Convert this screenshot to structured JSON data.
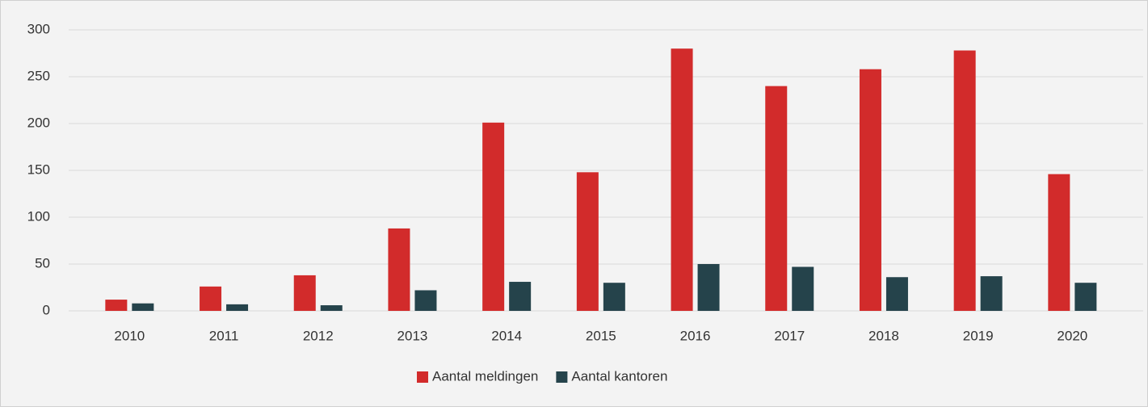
{
  "chart_data": {
    "type": "bar",
    "categories": [
      "2010",
      "2011",
      "2012",
      "2013",
      "2014",
      "2015",
      "2016",
      "2017",
      "2018",
      "2019",
      "2020"
    ],
    "series": [
      {
        "name": "Aantal meldingen",
        "color": "#d22b2b",
        "values": [
          12,
          26,
          38,
          88,
          201,
          148,
          280,
          240,
          258,
          278,
          146
        ]
      },
      {
        "name": "Aantal kantoren",
        "color": "#25434b",
        "values": [
          8,
          7,
          6,
          22,
          31,
          30,
          50,
          47,
          36,
          37,
          30
        ]
      }
    ],
    "ylim": [
      0,
      300
    ],
    "yticks": [
      0,
      50,
      100,
      150,
      200,
      250,
      300
    ],
    "grid": true,
    "legend": "bottom"
  }
}
